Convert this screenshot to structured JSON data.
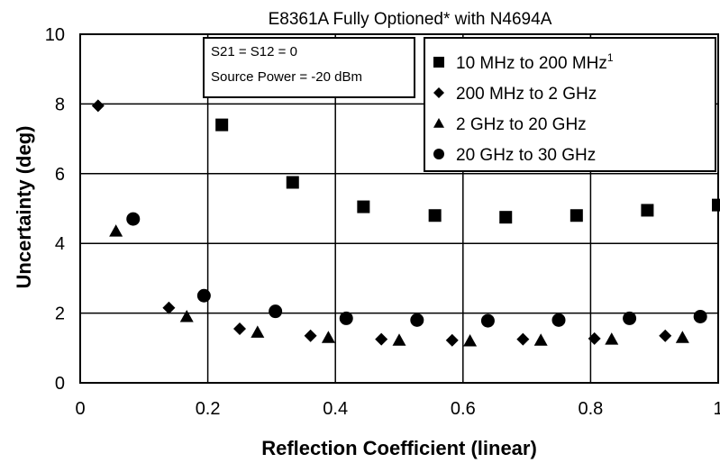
{
  "chart_data": {
    "type": "scatter",
    "title": "E8361A Fully Optioned* with N4694A",
    "xlabel": "Reflection Coefficient (linear)",
    "ylabel": "Uncertainty (deg)",
    "xlim": [
      0,
      1
    ],
    "ylim": [
      0,
      10
    ],
    "x_ticks": [
      "0",
      "0.2",
      "0.4",
      "0.6",
      "0.8",
      "1"
    ],
    "y_ticks": [
      "0",
      "2",
      "4",
      "6",
      "8",
      "10"
    ],
    "grid": true,
    "annotation": [
      "S21 = S12 = 0",
      "Source Power = -20 dBm"
    ],
    "legend_position": "top-right",
    "series": [
      {
        "name": "10 MHz to 200 MHz",
        "name_superscript": "1",
        "marker": "square",
        "x": [
          0.222,
          0.333,
          0.444,
          0.556,
          0.667,
          0.778,
          0.889,
          1.0
        ],
        "y": [
          7.4,
          5.75,
          5.05,
          4.8,
          4.75,
          4.8,
          4.95,
          5.1
        ]
      },
      {
        "name": "200 MHz to 2 GHz",
        "marker": "diamond",
        "x": [
          0.028,
          0.139,
          0.25,
          0.361,
          0.472,
          0.583,
          0.694,
          0.806,
          0.917
        ],
        "y": [
          7.95,
          2.15,
          1.55,
          1.35,
          1.25,
          1.22,
          1.25,
          1.27,
          1.35
        ]
      },
      {
        "name": "2 GHz to 20 GHz",
        "marker": "triangle",
        "x": [
          0.056,
          0.167,
          0.278,
          0.389,
          0.5,
          0.611,
          0.722,
          0.833,
          0.944
        ],
        "y": [
          4.35,
          1.9,
          1.45,
          1.3,
          1.22,
          1.2,
          1.22,
          1.25,
          1.3
        ]
      },
      {
        "name": "20 GHz to 30 GHz",
        "marker": "circle",
        "x": [
          0.083,
          0.194,
          0.306,
          0.417,
          0.528,
          0.639,
          0.75,
          0.861,
          0.972
        ],
        "y": [
          4.7,
          2.5,
          2.05,
          1.85,
          1.8,
          1.78,
          1.8,
          1.85,
          1.9
        ]
      }
    ]
  }
}
